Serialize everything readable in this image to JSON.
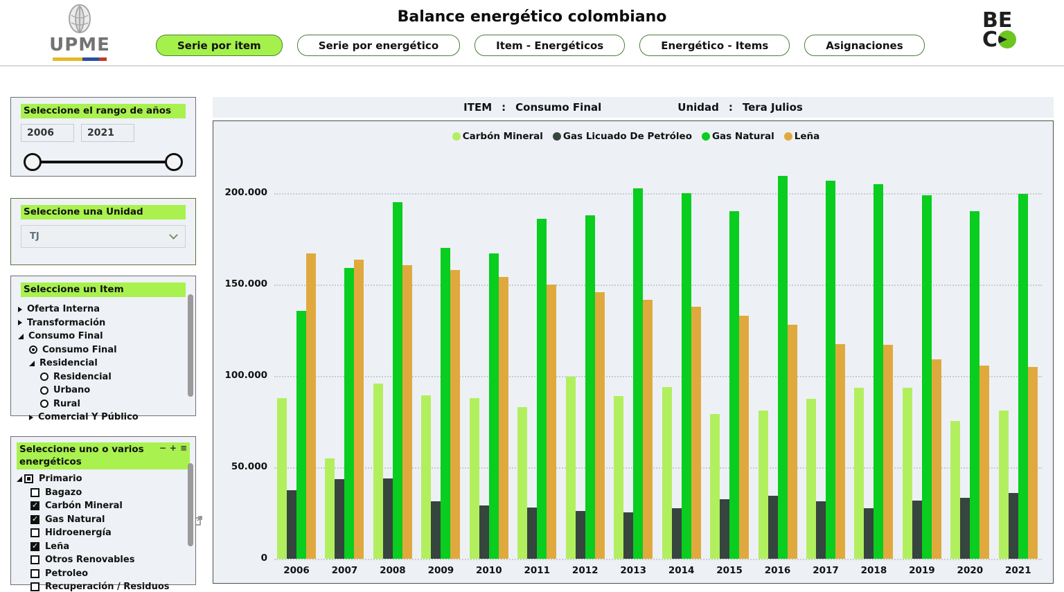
{
  "header": {
    "title": "Balance energético colombiano",
    "upme_logo_text": "UPME",
    "beco_line1": "BE",
    "beco_line2": "C",
    "tabs": [
      {
        "label": "Serie por item",
        "active": true
      },
      {
        "label": "Serie por energético",
        "active": false
      },
      {
        "label": "Item - Energéticos",
        "active": false
      },
      {
        "label": "Energético - Items",
        "active": false
      },
      {
        "label": "Asignaciones",
        "active": false
      }
    ]
  },
  "sidebar": {
    "year_panel": {
      "title": "Seleccione el rango de años",
      "from": "2006",
      "to": "2021"
    },
    "unit_panel": {
      "title": "Seleccione una Unidad",
      "value": "TJ"
    },
    "item_panel": {
      "title": "Seleccione un Item",
      "items": [
        {
          "label": "Oferta Interna",
          "icon": "collapsed",
          "level": 0
        },
        {
          "label": "Transformación",
          "icon": "collapsed",
          "level": 0
        },
        {
          "label": "Consumo Final",
          "icon": "expanded",
          "level": 0
        },
        {
          "label": "Consumo Final",
          "icon": "radio-selected",
          "level": 1
        },
        {
          "label": "Residencial",
          "icon": "expanded",
          "level": 1
        },
        {
          "label": "Residencial",
          "icon": "radio",
          "level": 2
        },
        {
          "label": "Urbano",
          "icon": "radio",
          "level": 2
        },
        {
          "label": "Rural",
          "icon": "radio",
          "level": 2
        },
        {
          "label": "Comercial Y Público",
          "icon": "collapsed",
          "level": 1
        }
      ]
    },
    "energetic_panel": {
      "title_line1": "Seleccione uno o varios",
      "title_line2": "energéticos",
      "tools": [
        "−",
        "+",
        "≡"
      ],
      "items": [
        {
          "label": "Primario",
          "state": "indeterminate",
          "expanded": true,
          "level": 0
        },
        {
          "label": "Bagazo",
          "state": "unchecked",
          "level": 1
        },
        {
          "label": "Carbón Mineral",
          "state": "checked",
          "level": 1
        },
        {
          "label": "Gas Natural",
          "state": "checked",
          "level": 1
        },
        {
          "label": "Hidroenergía",
          "state": "unchecked",
          "level": 1
        },
        {
          "label": "Leña",
          "state": "checked",
          "level": 1
        },
        {
          "label": "Otros Renovables",
          "state": "unchecked",
          "level": 1
        },
        {
          "label": "Petroleo",
          "state": "unchecked",
          "level": 1
        },
        {
          "label": "Recuperación / Residuos",
          "state": "unchecked",
          "level": 1
        }
      ]
    }
  },
  "chart": {
    "item_label": "ITEM",
    "colon": ":",
    "item_value": "Consumo Final",
    "unit_label": "Unidad",
    "unit_colon": ":",
    "unit_value": "Tera Julios",
    "chart_data": {
      "type": "bar",
      "title": "ITEM : Consumo Final — Unidad : Tera Julios",
      "categories": [
        "2006",
        "2007",
        "2008",
        "2009",
        "2010",
        "2011",
        "2012",
        "2013",
        "2014",
        "2015",
        "2016",
        "2017",
        "2018",
        "2019",
        "2020",
        "2021"
      ],
      "series": [
        {
          "name": "Carbón Mineral",
          "color": "#b2ef5e",
          "values": [
            88000,
            55000,
            96000,
            89500,
            88000,
            83000,
            99500,
            89000,
            94000,
            79000,
            81000,
            87500,
            93500,
            93500,
            75500,
            81000
          ]
        },
        {
          "name": "Gas Licuado De Petróleo",
          "color": "#36453d",
          "values": [
            37500,
            43500,
            44000,
            31500,
            29000,
            28000,
            26000,
            25500,
            27500,
            32500,
            34500,
            31500,
            27500,
            32000,
            33500,
            36000
          ]
        },
        {
          "name": "Gas Natural",
          "color": "#09cd1f",
          "values": [
            135500,
            159000,
            195000,
            170000,
            167000,
            186000,
            188000,
            202500,
            200000,
            190000,
            209500,
            207000,
            205000,
            199000,
            190000,
            199500
          ]
        },
        {
          "name": "Leña",
          "color": "#e0a93e",
          "values": [
            167000,
            163500,
            160500,
            158000,
            154000,
            150000,
            146000,
            141500,
            138000,
            133000,
            128000,
            117500,
            117000,
            109000,
            105500,
            105000
          ]
        }
      ],
      "xlabel": "",
      "ylabel": "",
      "ylim": [
        0,
        210000
      ],
      "yticks": [
        {
          "label": "0",
          "value": 0
        },
        {
          "label": "50.000",
          "value": 50000
        },
        {
          "label": "100.000",
          "value": 100000
        },
        {
          "label": "150.000",
          "value": 150000
        },
        {
          "label": "200.000",
          "value": 200000
        }
      ],
      "grid": "horizontal-dotted",
      "legend_position": "top"
    }
  }
}
